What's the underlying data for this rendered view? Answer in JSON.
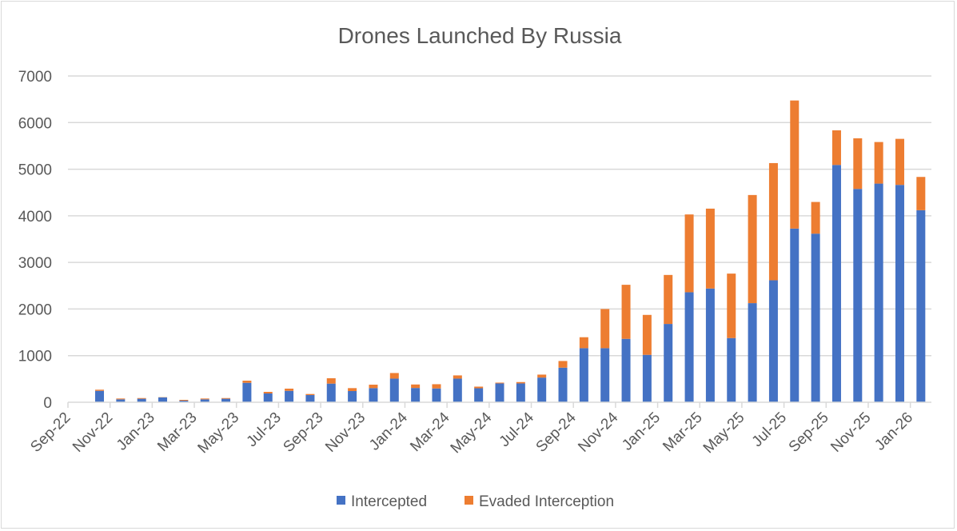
{
  "chart_data": {
    "type": "bar",
    "stacked": true,
    "title": "Drones Launched By Russia",
    "xlabel": "",
    "ylabel": "",
    "ylim": [
      0,
      7000
    ],
    "yticks": [
      0,
      1000,
      2000,
      3000,
      4000,
      5000,
      6000,
      7000
    ],
    "grid": true,
    "legend": "bottom",
    "categories": [
      "Sep-22",
      "Oct-22",
      "Nov-22",
      "Dec-22",
      "Jan-23",
      "Feb-23",
      "Mar-23",
      "Apr-23",
      "May-23",
      "Jun-23",
      "Jul-23",
      "Aug-23",
      "Sep-23",
      "Oct-23",
      "Nov-23",
      "Dec-23",
      "Jan-24",
      "Feb-24",
      "Mar-24",
      "Apr-24",
      "May-24",
      "Jun-24",
      "Jul-24",
      "Aug-24",
      "Sep-24",
      "Oct-24",
      "Nov-24",
      "Dec-24",
      "Jan-25",
      "Feb-25",
      "Mar-25",
      "Apr-25",
      "May-25",
      "Jun-25",
      "Jul-25",
      "Aug-25",
      "Sep-25",
      "Oct-25",
      "Nov-25",
      "Dec-25",
      "Jan-26"
    ],
    "xtick_labels": [
      "Sep-22",
      "Nov-22",
      "Jan-23",
      "Mar-23",
      "May-23",
      "Jul-23",
      "Sep-23",
      "Nov-23",
      "Jan-24",
      "Mar-24",
      "May-24",
      "Jul-24",
      "Sep-24",
      "Nov-24",
      "Jan-25",
      "Mar-25",
      "May-25",
      "Jul-25",
      "Sep-25",
      "Nov-25",
      "Jan-26"
    ],
    "series": [
      {
        "name": "Intercepted",
        "color": "#4472C4",
        "values": [
          0,
          245,
          63,
          75,
          103,
          34,
          63,
          75,
          417,
          189,
          245,
          154,
          400,
          240,
          303,
          507,
          306,
          296,
          507,
          300,
          404,
          404,
          529,
          742,
          1160,
          1160,
          1360,
          1017,
          1680,
          2360,
          2440,
          1377,
          2126,
          2617,
          3726,
          3617,
          5091,
          4577,
          4691,
          4663,
          4120
        ]
      },
      {
        "name": "Evaded Interception",
        "color": "#ED7D31",
        "values": [
          0,
          24,
          17,
          15,
          5,
          17,
          17,
          15,
          46,
          34,
          47,
          23,
          115,
          63,
          74,
          120,
          75,
          91,
          69,
          35,
          17,
          29,
          64,
          143,
          235,
          840,
          1160,
          857,
          1051,
          1669,
          1714,
          1383,
          2320,
          2514,
          2748,
          680,
          743,
          1086,
          892,
          988,
          714
        ]
      }
    ]
  }
}
